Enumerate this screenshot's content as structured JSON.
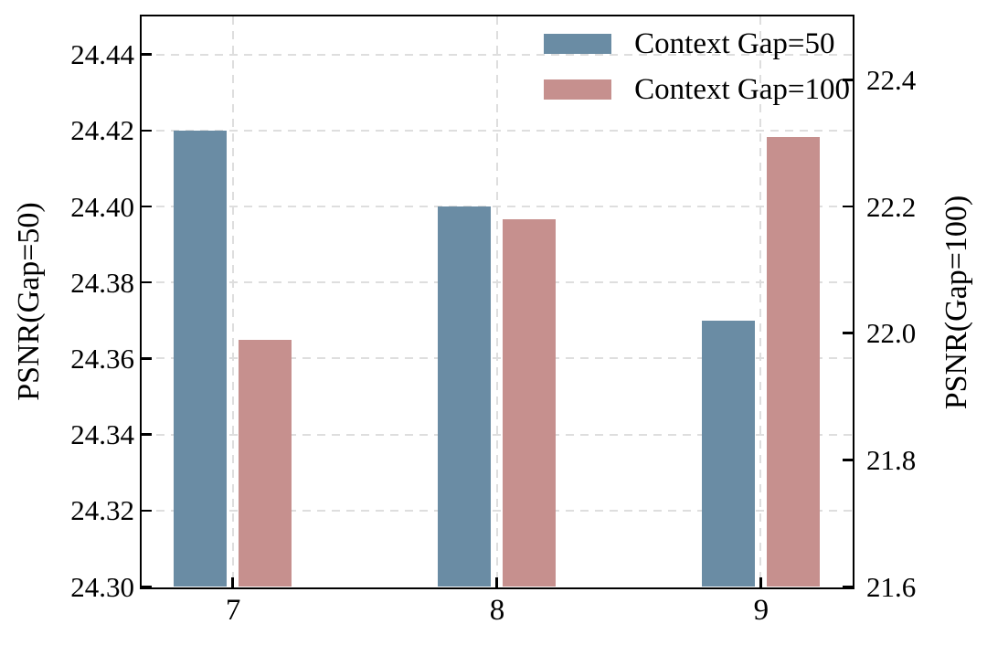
{
  "chart_data": {
    "type": "bar",
    "title": "",
    "categories": [
      "7",
      "8",
      "9"
    ],
    "series": [
      {
        "name": "Context Gap=50",
        "axis": "left",
        "color": "#6a8ca4",
        "values": [
          24.42,
          24.4,
          24.37
        ]
      },
      {
        "name": "Context Gap=100",
        "axis": "right",
        "color": "#c6908e",
        "values": [
          21.99,
          22.18,
          22.31
        ]
      }
    ],
    "left_axis": {
      "label": "PSNR(Gap=50)",
      "ylim": [
        24.3,
        24.45
      ],
      "ticks": [
        "24.30",
        "24.32",
        "24.34",
        "24.36",
        "24.38",
        "24.40",
        "24.42",
        "24.44"
      ]
    },
    "right_axis": {
      "label": "PSNR(Gap=100)",
      "ylim": [
        21.6,
        22.5
      ],
      "ticks": [
        "21.6",
        "21.8",
        "22.0",
        "22.2",
        "22.4"
      ]
    },
    "xlim": [
      6.655,
      9.345
    ],
    "bar_width": 0.2,
    "bar_offset": 0.1225,
    "grid": {
      "dashed": true,
      "color": "#dedede",
      "horizontal_on": "left_ticks",
      "vertical_on": "x_ticks"
    },
    "legend": {
      "position": "upper right",
      "items": [
        "Context Gap=50",
        "Context Gap=100"
      ]
    },
    "colors": {
      "axis": "#000000",
      "background": "#ffffff",
      "bar_blue": "#6a8ca4",
      "bar_pink": "#c6908e"
    }
  }
}
